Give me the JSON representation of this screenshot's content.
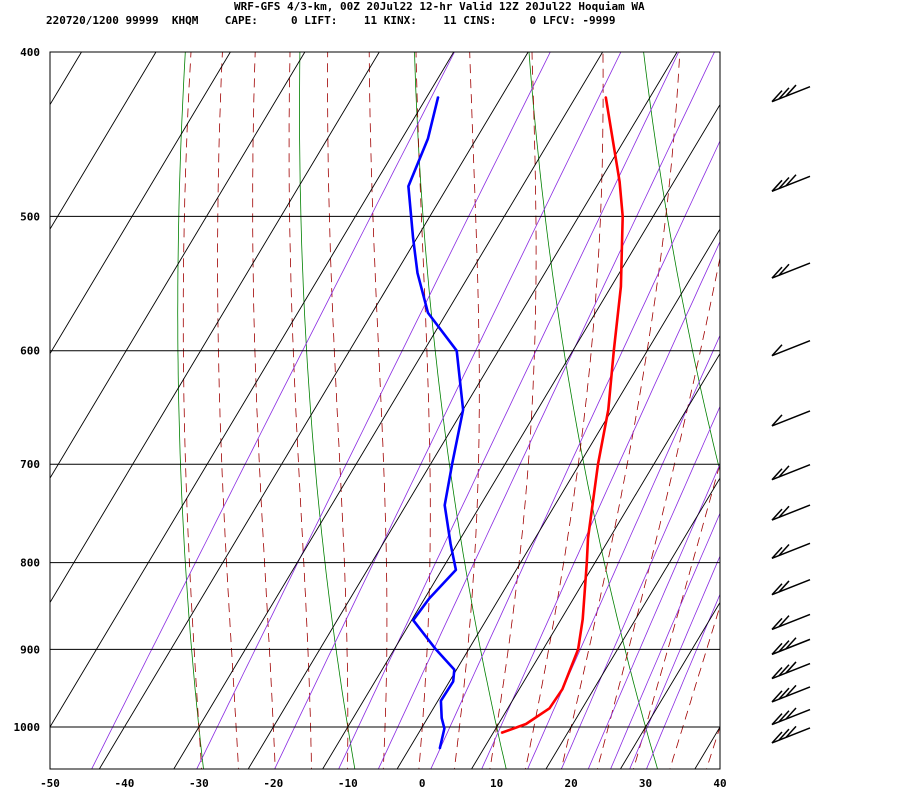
{
  "header": {
    "line1": "WRF-GFS 4/3-km, 00Z 20Jul22 12-hr Valid 12Z 20Jul22 Hoquiam WA",
    "line2": "220720/1200 99999  KHQM    CAPE:     0 LIFT:    11 KINX:    11 CINS:     0 LFCV: -9999"
  },
  "chart_data": {
    "type": "line",
    "title": "WRF-GFS 4/3-km, 00Z 20Jul22 12-hr Valid 12Z 20Jul22 Hoquiam WA",
    "xlabel": "",
    "ylabel": "",
    "x_ticks": [
      -50,
      -40,
      -30,
      -20,
      -10,
      0,
      10,
      20,
      30,
      40
    ],
    "y_ticks": [
      400,
      500,
      600,
      700,
      800,
      900,
      1000
    ],
    "xlim": [
      -50,
      40
    ],
    "ylim": [
      400,
      1040
    ],
    "y_scale": "log",
    "skew": "skew-T",
    "grid": true,
    "background_lines": {
      "isotherms_color": "#000000",
      "dry_adiabats_color": "#008000",
      "moist_adiabats_color": "#a00000",
      "mixing_ratio_color": "#8a2be2"
    },
    "series": [
      {
        "color": "#ff0000",
        "points": [
          {
            "p": 1008,
            "t": 11.1
          },
          {
            "p": 996,
            "t": 13.7
          },
          {
            "p": 975,
            "t": 15.6
          },
          {
            "p": 950,
            "t": 15.8
          },
          {
            "p": 900,
            "t": 14.7
          },
          {
            "p": 864,
            "t": 12.9
          },
          {
            "p": 800,
            "t": 8.9
          },
          {
            "p": 774,
            "t": 7.1
          },
          {
            "p": 700,
            "t": 2.5
          },
          {
            "p": 650,
            "t": -0.5
          },
          {
            "p": 600,
            "t": -4.5
          },
          {
            "p": 550,
            "t": -8.7
          },
          {
            "p": 500,
            "t": -14.1
          },
          {
            "p": 477,
            "t": -17.3
          },
          {
            "p": 425,
            "t": -26.0
          }
        ]
      },
      {
        "color": "#0000ff",
        "points": [
          {
            "p": 1030,
            "t": 4.1
          },
          {
            "p": 1002,
            "t": 3.1
          },
          {
            "p": 988,
            "t": 1.9
          },
          {
            "p": 965,
            "t": 0.4
          },
          {
            "p": 940,
            "t": 0.5
          },
          {
            "p": 925,
            "t": -0.3
          },
          {
            "p": 900,
            "t": -4.4
          },
          {
            "p": 865,
            "t": -9.8
          },
          {
            "p": 840,
            "t": -9.4
          },
          {
            "p": 808,
            "t": -8.1
          },
          {
            "p": 780,
            "t": -10.9
          },
          {
            "p": 740,
            "t": -14.8
          },
          {
            "p": 700,
            "t": -17.1
          },
          {
            "p": 650,
            "t": -20.0
          },
          {
            "p": 600,
            "t": -25.6
          },
          {
            "p": 570,
            "t": -32.5
          },
          {
            "p": 540,
            "t": -37.1
          },
          {
            "p": 515,
            "t": -40.5
          },
          {
            "p": 480,
            "t": -45.3
          },
          {
            "p": 450,
            "t": -46.5
          },
          {
            "p": 425,
            "t": -48.5
          }
        ]
      }
    ],
    "wind_barbs": [
      {
        "p": 425,
        "barbs": 3
      },
      {
        "p": 480,
        "barbs": 3
      },
      {
        "p": 540,
        "barbs": 2
      },
      {
        "p": 600,
        "barbs": 1
      },
      {
        "p": 660,
        "barbs": 1
      },
      {
        "p": 710,
        "barbs": 2
      },
      {
        "p": 750,
        "barbs": 2
      },
      {
        "p": 790,
        "barbs": 2
      },
      {
        "p": 830,
        "barbs": 2
      },
      {
        "p": 870,
        "barbs": 2
      },
      {
        "p": 900,
        "barbs": 3
      },
      {
        "p": 930,
        "barbs": 3
      },
      {
        "p": 960,
        "barbs": 3
      },
      {
        "p": 990,
        "barbs": 3
      },
      {
        "p": 1015,
        "barbs": 3
      }
    ]
  }
}
